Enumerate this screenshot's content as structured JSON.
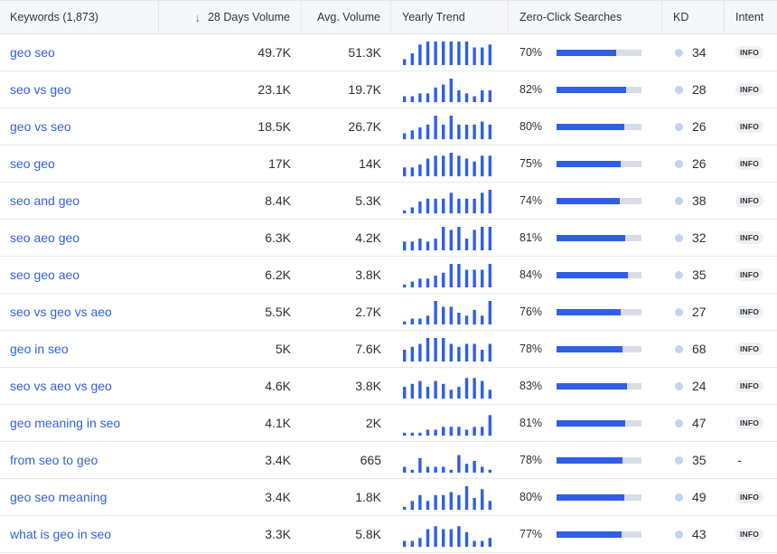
{
  "header": {
    "keywords": "Keywords (1,873)",
    "volume_28d": "28 Days Volume",
    "avg_volume": "Avg. Volume",
    "yearly_trend": "Yearly Trend",
    "zero_click": "Zero-Click Searches",
    "kd": "KD",
    "intent": "Intent",
    "sort_icon": "arrow-down-icon"
  },
  "colors": {
    "accent": "#2f5fe6",
    "link": "#3461d9",
    "track": "#d9dce2",
    "kd_dot": "#c3d3f1"
  },
  "rows": [
    {
      "keyword": "geo seo",
      "volume_28d": "49.7K",
      "avg_volume": "51.3K",
      "trend": [
        2,
        4,
        7,
        8,
        8,
        8,
        8,
        8,
        8,
        6,
        6,
        7
      ],
      "zero_click_pct": "70%",
      "zero_click_value": 0.7,
      "kd": "34",
      "intent": "INFO"
    },
    {
      "keyword": "seo vs geo",
      "volume_28d": "23.1K",
      "avg_volume": "19.7K",
      "trend": [
        2,
        2,
        3,
        3,
        5,
        6,
        8,
        4,
        3,
        2,
        4,
        4
      ],
      "zero_click_pct": "82%",
      "zero_click_value": 0.82,
      "kd": "28",
      "intent": "INFO"
    },
    {
      "keyword": "geo vs seo",
      "volume_28d": "18.5K",
      "avg_volume": "26.7K",
      "trend": [
        2,
        3,
        4,
        5,
        8,
        5,
        8,
        5,
        5,
        5,
        6,
        5
      ],
      "zero_click_pct": "80%",
      "zero_click_value": 0.8,
      "kd": "26",
      "intent": "INFO"
    },
    {
      "keyword": "seo geo",
      "volume_28d": "17K",
      "avg_volume": "14K",
      "trend": [
        3,
        3,
        4,
        6,
        7,
        7,
        8,
        7,
        6,
        5,
        7,
        7
      ],
      "zero_click_pct": "75%",
      "zero_click_value": 0.75,
      "kd": "26",
      "intent": "INFO"
    },
    {
      "keyword": "seo and geo",
      "volume_28d": "8.4K",
      "avg_volume": "5.3K",
      "trend": [
        1,
        2,
        4,
        5,
        5,
        5,
        7,
        5,
        5,
        5,
        7,
        8
      ],
      "zero_click_pct": "74%",
      "zero_click_value": 0.74,
      "kd": "38",
      "intent": "INFO"
    },
    {
      "keyword": "seo aeo geo",
      "volume_28d": "6.3K",
      "avg_volume": "4.2K",
      "trend": [
        3,
        3,
        4,
        3,
        4,
        8,
        7,
        8,
        4,
        7,
        8,
        8
      ],
      "zero_click_pct": "81%",
      "zero_click_value": 0.81,
      "kd": "32",
      "intent": "INFO"
    },
    {
      "keyword": "seo geo aeo",
      "volume_28d": "6.2K",
      "avg_volume": "3.8K",
      "trend": [
        1,
        2,
        3,
        3,
        4,
        5,
        8,
        8,
        6,
        6,
        6,
        8
      ],
      "zero_click_pct": "84%",
      "zero_click_value": 0.84,
      "kd": "35",
      "intent": "INFO"
    },
    {
      "keyword": "seo vs geo vs aeo",
      "volume_28d": "5.5K",
      "avg_volume": "2.7K",
      "trend": [
        1,
        2,
        2,
        3,
        8,
        6,
        6,
        4,
        3,
        5,
        3,
        8
      ],
      "zero_click_pct": "76%",
      "zero_click_value": 0.76,
      "kd": "27",
      "intent": "INFO"
    },
    {
      "keyword": "geo in seo",
      "volume_28d": "5K",
      "avg_volume": "7.6K",
      "trend": [
        4,
        5,
        6,
        8,
        8,
        8,
        6,
        5,
        6,
        6,
        4,
        6
      ],
      "zero_click_pct": "78%",
      "zero_click_value": 0.78,
      "kd": "68",
      "intent": "INFO"
    },
    {
      "keyword": "seo vs aeo vs geo",
      "volume_28d": "4.6K",
      "avg_volume": "3.8K",
      "trend": [
        4,
        5,
        6,
        4,
        6,
        5,
        3,
        4,
        7,
        7,
        6,
        3
      ],
      "zero_click_pct": "83%",
      "zero_click_value": 0.83,
      "kd": "24",
      "intent": "INFO"
    },
    {
      "keyword": "geo meaning in seo",
      "volume_28d": "4.1K",
      "avg_volume": "2K",
      "trend": [
        1,
        1,
        1,
        2,
        2,
        3,
        3,
        3,
        2,
        3,
        3,
        7
      ],
      "zero_click_pct": "81%",
      "zero_click_value": 0.81,
      "kd": "47",
      "intent": "INFO"
    },
    {
      "keyword": "from seo to geo",
      "volume_28d": "3.4K",
      "avg_volume": "665",
      "trend": [
        2,
        1,
        5,
        2,
        2,
        2,
        1,
        6,
        3,
        4,
        2,
        1
      ],
      "zero_click_pct": "78%",
      "zero_click_value": 0.78,
      "kd": "35",
      "intent": "-"
    },
    {
      "keyword": "geo seo meaning",
      "volume_28d": "3.4K",
      "avg_volume": "1.8K",
      "trend": [
        1,
        3,
        5,
        3,
        5,
        5,
        6,
        5,
        8,
        4,
        7,
        3
      ],
      "zero_click_pct": "80%",
      "zero_click_value": 0.8,
      "kd": "49",
      "intent": "INFO"
    },
    {
      "keyword": "what is geo in seo",
      "volume_28d": "3.3K",
      "avg_volume": "5.8K",
      "trend": [
        2,
        2,
        3,
        6,
        7,
        6,
        6,
        7,
        5,
        2,
        2,
        3
      ],
      "zero_click_pct": "77%",
      "zero_click_value": 0.77,
      "kd": "43",
      "intent": "INFO"
    }
  ]
}
